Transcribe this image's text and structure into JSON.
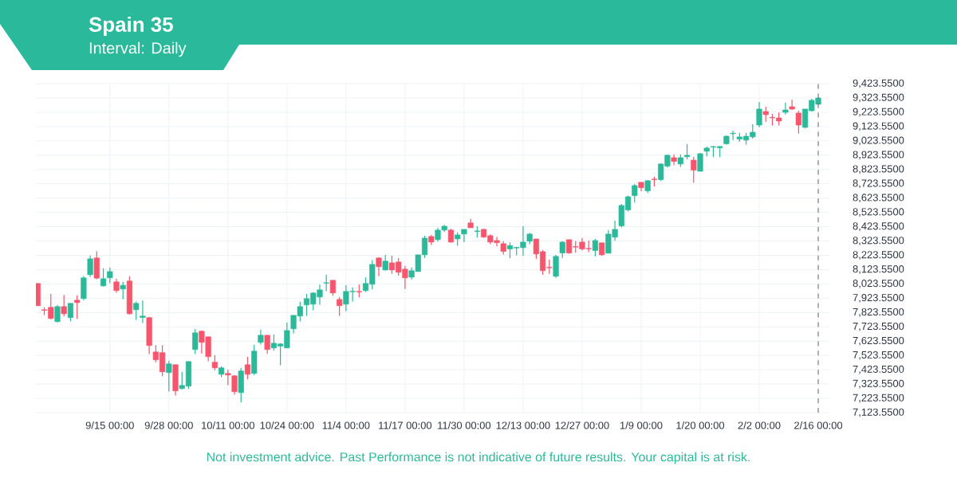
{
  "chart_data": {
    "type": "candlestick",
    "title": "Spain 35",
    "subtitle": "Interval: Daily",
    "annotations": [
      "Not investment advice. Past Performance is not indicative of future results. Your capital is at risk."
    ],
    "categories": [
      null,
      null,
      null,
      null,
      null,
      null,
      null,
      null,
      null,
      null,
      null,
      "9/15 00:00",
      null,
      null,
      null,
      null,
      null,
      null,
      null,
      null,
      "9/28 00:00",
      null,
      null,
      null,
      null,
      null,
      null,
      null,
      null,
      "10/11 00:00",
      null,
      null,
      null,
      null,
      null,
      null,
      null,
      null,
      "10/24 00:00",
      null,
      null,
      null,
      null,
      null,
      null,
      null,
      null,
      "11/4 00:00",
      null,
      null,
      null,
      null,
      null,
      null,
      null,
      null,
      "11/17 00:00",
      null,
      null,
      null,
      null,
      null,
      null,
      null,
      null,
      "11/30 00:00",
      null,
      null,
      null,
      null,
      null,
      null,
      null,
      null,
      "12/13 00:00",
      null,
      null,
      null,
      null,
      null,
      null,
      null,
      null,
      "12/27 00:00",
      null,
      null,
      null,
      null,
      null,
      null,
      null,
      null,
      "1/9 00:00",
      null,
      null,
      null,
      null,
      null,
      null,
      null,
      null,
      "1/20 00:00",
      null,
      null,
      null,
      null,
      null,
      null,
      null,
      null,
      "2/2 00:00",
      null,
      null,
      null,
      null,
      null,
      null,
      null,
      null,
      "2/16 00:00"
    ],
    "ohlc": [
      [
        8027,
        8027,
        7871,
        7871
      ],
      [
        7843,
        7860,
        7806,
        7839
      ],
      [
        7860,
        7954,
        7776,
        7782
      ],
      [
        7760,
        7875,
        7754,
        7865
      ],
      [
        7865,
        7947,
        7797,
        7815
      ],
      [
        7788,
        7888,
        7762,
        7888
      ],
      [
        7910,
        7943,
        7780,
        7893
      ],
      [
        7921,
        8079,
        7910,
        8066
      ],
      [
        8088,
        8222,
        8073,
        8199
      ],
      [
        8205,
        8251,
        8056,
        8064
      ],
      [
        8010,
        8133,
        8005,
        8060
      ],
      [
        8066,
        8138,
        8029,
        8110
      ],
      [
        8038,
        8060,
        7962,
        7977
      ],
      [
        7988,
        8038,
        7917,
        8014
      ],
      [
        8044,
        8077,
        7810,
        7815
      ],
      [
        7843,
        7901,
        7773,
        7888
      ],
      [
        7789,
        7908,
        7750,
        7799
      ],
      [
        7788,
        7793,
        7533,
        7593
      ],
      [
        7548,
        7596,
        7476,
        7493
      ],
      [
        7543,
        7596,
        7378,
        7409
      ],
      [
        7404,
        7485,
        7272,
        7465
      ],
      [
        7459,
        7459,
        7244,
        7276
      ],
      [
        7292,
        7409,
        7287,
        7314
      ],
      [
        7309,
        7481,
        7289,
        7481
      ],
      [
        7565,
        7708,
        7533,
        7682
      ],
      [
        7693,
        7698,
        7537,
        7615
      ],
      [
        7654,
        7654,
        7483,
        7515
      ],
      [
        7476,
        7526,
        7420,
        7437
      ],
      [
        7392,
        7448,
        7372,
        7437
      ],
      [
        7398,
        7424,
        7316,
        7387
      ],
      [
        7381,
        7387,
        7250,
        7270
      ],
      [
        7264,
        7437,
        7196,
        7415
      ],
      [
        7459,
        7515,
        7357,
        7392
      ],
      [
        7398,
        7598,
        7387,
        7554
      ],
      [
        7615,
        7704,
        7600,
        7665
      ],
      [
        7665,
        7665,
        7535,
        7565
      ],
      [
        7576,
        7671,
        7556,
        7609
      ],
      [
        7589,
        7609,
        7455,
        7604
      ],
      [
        7576,
        7754,
        7576,
        7698
      ],
      [
        7710,
        7804,
        7678,
        7804
      ],
      [
        7799,
        7899,
        7761,
        7865
      ],
      [
        7877,
        7954,
        7800,
        7921
      ],
      [
        7882,
        7966,
        7839,
        7960
      ],
      [
        7932,
        8019,
        7878,
        7982
      ],
      [
        8029,
        8088,
        7973,
        8032
      ],
      [
        8049,
        8049,
        7940,
        7960
      ],
      [
        7915,
        7932,
        7800,
        7871
      ],
      [
        7882,
        8014,
        7834,
        7971
      ],
      [
        7969,
        7999,
        7901,
        7973
      ],
      [
        7971,
        8019,
        7930,
        7967
      ],
      [
        7977,
        8069,
        7967,
        8027
      ],
      [
        8021,
        8188,
        7986,
        8160
      ],
      [
        8205,
        8210,
        8077,
        8144
      ],
      [
        8121,
        8227,
        8116,
        8183
      ],
      [
        8171,
        8222,
        8094,
        8121
      ],
      [
        8177,
        8205,
        8082,
        8105
      ],
      [
        8127,
        8149,
        7988,
        8066
      ],
      [
        8071,
        8138,
        8055,
        8116
      ],
      [
        8110,
        8227,
        8110,
        8227
      ],
      [
        8227,
        8361,
        8205,
        8344
      ],
      [
        8355,
        8366,
        8296,
        8316
      ],
      [
        8333,
        8416,
        8320,
        8400
      ],
      [
        8400,
        8437,
        8387,
        8427
      ],
      [
        8400,
        8409,
        8312,
        8316
      ],
      [
        8338,
        8385,
        8290,
        8366
      ],
      [
        8372,
        8405,
        8316,
        8405
      ],
      [
        8450,
        8478,
        8416,
        8416
      ],
      [
        8390,
        8427,
        8348,
        8394
      ],
      [
        8405,
        8409,
        8346,
        8351
      ],
      [
        8361,
        8370,
        8301,
        8316
      ],
      [
        8327,
        8353,
        8286,
        8312
      ],
      [
        8305,
        8322,
        8229,
        8251
      ],
      [
        8268,
        8314,
        8203,
        8292
      ],
      [
        8275,
        8283,
        8223,
        8279
      ],
      [
        8277,
        8427,
        8220,
        8316
      ],
      [
        8322,
        8381,
        8301,
        8372
      ],
      [
        8338,
        8338,
        8199,
        8233
      ],
      [
        8249,
        8260,
        8088,
        8116
      ],
      [
        8140,
        8194,
        8094,
        8136
      ],
      [
        8077,
        8227,
        8066,
        8216
      ],
      [
        8240,
        8322,
        8205,
        8316
      ],
      [
        8333,
        8333,
        8234,
        8240
      ],
      [
        8285,
        8324,
        8242,
        8281
      ],
      [
        8316,
        8344,
        8257,
        8268
      ],
      [
        8272,
        8327,
        8246,
        8268
      ],
      [
        8257,
        8338,
        8216,
        8327
      ],
      [
        8311,
        8311,
        8220,
        8227
      ],
      [
        8238,
        8400,
        8238,
        8372
      ],
      [
        8350,
        8466,
        8325,
        8405
      ],
      [
        8429,
        8583,
        8418,
        8572
      ],
      [
        8541,
        8641,
        8530,
        8633
      ],
      [
        8641,
        8722,
        8593,
        8711
      ],
      [
        8734,
        8734,
        8670,
        8696
      ],
      [
        8674,
        8750,
        8659,
        8745
      ],
      [
        8756,
        8773,
        8704,
        8752
      ],
      [
        8752,
        8867,
        8743,
        8862
      ],
      [
        8847,
        8928,
        8837,
        8923
      ],
      [
        8906,
        8928,
        8854,
        8880
      ],
      [
        8862,
        8928,
        8841,
        8906
      ],
      [
        8913,
        9001,
        8895,
        8923
      ],
      [
        8889,
        8912,
        8732,
        8819
      ],
      [
        8811,
        8939,
        8811,
        8934
      ],
      [
        8951,
        8984,
        8915,
        8973
      ],
      [
        8980,
        8988,
        8910,
        8984
      ],
      [
        8975,
        8988,
        8910,
        8984
      ],
      [
        9003,
        9062,
        8997,
        9056
      ],
      [
        9073,
        9095,
        9030,
        9077
      ],
      [
        9036,
        9079,
        9017,
        9051
      ],
      [
        9029,
        9079,
        8997,
        9056
      ],
      [
        9051,
        9140,
        9040,
        9084
      ],
      [
        9134,
        9296,
        9119,
        9246
      ],
      [
        9229,
        9262,
        9158,
        9207
      ],
      [
        9188,
        9212,
        9131,
        9184
      ],
      [
        9184,
        9223,
        9131,
        9162
      ],
      [
        9223,
        9290,
        9208,
        9240
      ],
      [
        9262,
        9312,
        9240,
        9246
      ],
      [
        9218,
        9234,
        9075,
        9134
      ],
      [
        9118,
        9246,
        9112,
        9246
      ],
      [
        9234,
        9318,
        9229,
        9307
      ],
      [
        9279,
        9329,
        9279,
        9323
      ]
    ],
    "colors": [
      "#f5566d",
      "#f5566d",
      "#f5566d",
      "#2bb99a",
      "#f5566d",
      "#2bb99a",
      "#f5566d",
      "#2bb99a",
      "#2bb99a",
      "#f5566d",
      "#2bb99a",
      "#2bb99a",
      "#f5566d",
      "#2bb99a",
      "#f5566d",
      "#2bb99a",
      "#2bb99a",
      "#f5566d",
      "#f5566d",
      "#f5566d",
      "#2bb99a",
      "#f5566d",
      "#2bb99a",
      "#2bb99a",
      "#2bb99a",
      "#f5566d",
      "#f5566d",
      "#f5566d",
      "#2bb99a",
      "#f5566d",
      "#f5566d",
      "#2bb99a",
      "#f5566d",
      "#2bb99a",
      "#2bb99a",
      "#f5566d",
      "#2bb99a",
      "#2bb99a",
      "#2bb99a",
      "#2bb99a",
      "#2bb99a",
      "#2bb99a",
      "#2bb99a",
      "#2bb99a",
      "#2bb99a",
      "#f5566d",
      "#f5566d",
      "#2bb99a",
      "#2bb99a",
      "#f5566d",
      "#2bb99a",
      "#2bb99a",
      "#f5566d",
      "#2bb99a",
      "#f5566d",
      "#f5566d",
      "#f5566d",
      "#2bb99a",
      "#2bb99a",
      "#2bb99a",
      "#f5566d",
      "#2bb99a",
      "#2bb99a",
      "#f5566d",
      "#2bb99a",
      "#2bb99a",
      "#f5566d",
      "#2bb99a",
      "#f5566d",
      "#f5566d",
      "#f5566d",
      "#f5566d",
      "#2bb99a",
      "#2bb99a",
      "#2bb99a",
      "#2bb99a",
      "#f5566d",
      "#f5566d",
      "#f5566d",
      "#2bb99a",
      "#2bb99a",
      "#f5566d",
      "#f5566d",
      "#f5566d",
      "#f5566d",
      "#2bb99a",
      "#f5566d",
      "#2bb99a",
      "#2bb99a",
      "#2bb99a",
      "#2bb99a",
      "#2bb99a",
      "#f5566d",
      "#2bb99a",
      "#f5566d",
      "#2bb99a",
      "#2bb99a",
      "#f5566d",
      "#2bb99a",
      "#2bb99a",
      "#f5566d",
      "#2bb99a",
      "#2bb99a",
      "#2bb99a",
      "#2bb99a",
      "#2bb99a",
      "#2bb99a",
      "#2bb99a",
      "#2bb99a",
      "#2bb99a",
      "#2bb99a",
      "#f5566d",
      "#f5566d",
      "#f5566d",
      "#2bb99a",
      "#f5566d",
      "#f5566d",
      "#2bb99a",
      "#2bb99a",
      "#2bb99a"
    ],
    "ylim": [
      7123.55,
      9423.55
    ],
    "yticks": [
      {
        "value": 7123.55,
        "label": "7,123.5500"
      },
      {
        "value": 7223.55,
        "label": "7,223.5500"
      },
      {
        "value": 7323.55,
        "label": "7,323.5500"
      },
      {
        "value": 7423.55,
        "label": "7,423.5500"
      },
      {
        "value": 7523.55,
        "label": "7,523.5500"
      },
      {
        "value": 7623.55,
        "label": "7,623.5500"
      },
      {
        "value": 7723.55,
        "label": "7,723.5500"
      },
      {
        "value": 7823.55,
        "label": "7,823.5500"
      },
      {
        "value": 7923.55,
        "label": "7,923.5500"
      },
      {
        "value": 8023.55,
        "label": "8,023.5500"
      },
      {
        "value": 8123.55,
        "label": "8,123.5500"
      },
      {
        "value": 8223.55,
        "label": "8,223.5500"
      },
      {
        "value": 8323.55,
        "label": "8,323.5500"
      },
      {
        "value": 8423.55,
        "label": "8,423.5500"
      },
      {
        "value": 8523.55,
        "label": "8,523.5500"
      },
      {
        "value": 8623.55,
        "label": "8,623.5500"
      },
      {
        "value": 8723.55,
        "label": "8,723.5500"
      },
      {
        "value": 8823.55,
        "label": "8,823.5500"
      },
      {
        "value": 8923.55,
        "label": "8,923.5500"
      },
      {
        "value": 9023.55,
        "label": "9,023.5500"
      },
      {
        "value": 9123.55,
        "label": "9,123.5500"
      },
      {
        "value": 9223.55,
        "label": "9,223.5500"
      },
      {
        "value": 9323.55,
        "label": "9,323.5500"
      },
      {
        "value": 9423.55,
        "label": "9,423.5500"
      }
    ],
    "grid": true,
    "ref_lines": [
      {
        "axis": "x",
        "value": "2/16 00:00",
        "color": "#666666",
        "line_style": "dashed"
      }
    ]
  }
}
